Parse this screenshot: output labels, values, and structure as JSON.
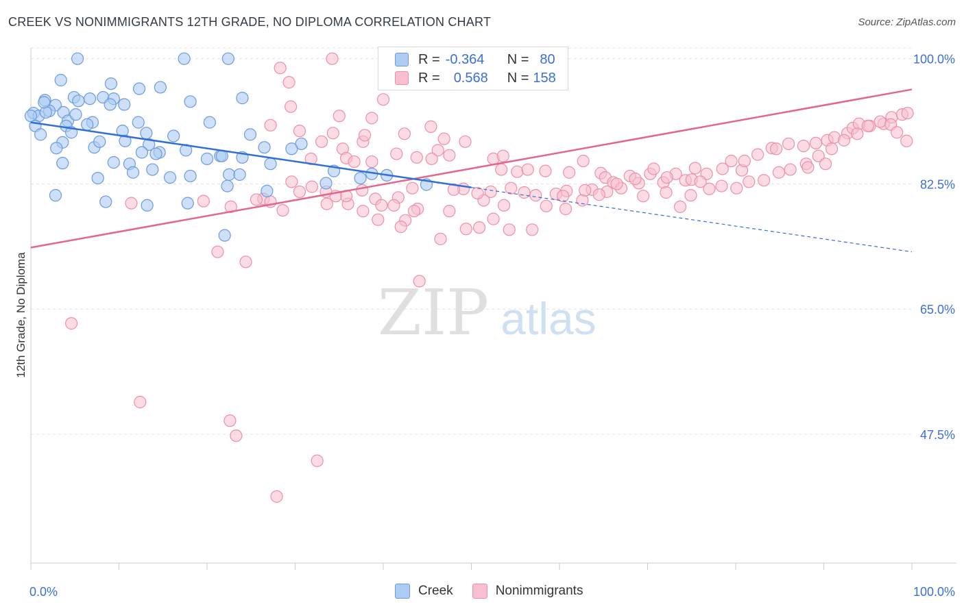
{
  "header": {
    "title": "CREEK VS NONIMMIGRANTS 12TH GRADE, NO DIPLOMA CORRELATION CHART",
    "source": "Source: ZipAtlas.com"
  },
  "watermark": {
    "zip": "ZIP",
    "atlas": "atlas"
  },
  "legend": {
    "rows": [
      {
        "r_label": "R =",
        "r_value": "-0.364",
        "n_label": "N =",
        "n_value": "80"
      },
      {
        "r_label": "R =",
        "r_value": "0.568",
        "n_label": "N =",
        "n_value": "158"
      }
    ],
    "bottom": [
      "Creek",
      "Nonimmigrants"
    ]
  },
  "colors": {
    "creek_fill": "#aecbf2",
    "creek_stroke": "#6a9be0",
    "creek_line": "#2f6fd6",
    "nonimm_fill": "#f7bfd0",
    "nonimm_stroke": "#ec8faa",
    "nonimm_line": "#e2668e",
    "axis_label": "#3a6fd8",
    "grid": "#e0e0e0"
  },
  "chart_data": {
    "type": "scatter",
    "title": "CREEK VS NONIMMIGRANTS 12TH GRADE, NO DIPLOMA CORRELATION CHART",
    "xlabel": "",
    "ylabel": "12th Grade, No Diploma",
    "xlim": [
      0,
      100
    ],
    "ylim": [
      29.5,
      101.5
    ],
    "x_tick_labels": [
      "0.0%",
      "100.0%"
    ],
    "y_ticks": [
      47.5,
      65.0,
      82.5,
      100.0
    ],
    "y_tick_labels": [
      "47.5%",
      "65.0%",
      "82.5%",
      "100.0%"
    ],
    "grid": true,
    "legend_position": "top-center",
    "series": [
      {
        "name": "Creek",
        "r": -0.364,
        "n": 80,
        "trend": {
          "x0": 0,
          "y0": 91.1,
          "x1": 50,
          "y1": 82.0,
          "dashed_to_x": 100,
          "dashed_to_y": 73.0
        },
        "points": [
          [
            5.3,
            100
          ],
          [
            17.4,
            100
          ],
          [
            22.4,
            100
          ],
          [
            3.4,
            97.0
          ],
          [
            9.1,
            96.5
          ],
          [
            12.3,
            95.8
          ],
          [
            14.7,
            96.0
          ],
          [
            4.9,
            94.6
          ],
          [
            5.4,
            94.1
          ],
          [
            6.7,
            94.4
          ],
          [
            8.2,
            94.6
          ],
          [
            9.4,
            94.4
          ],
          [
            1.6,
            94.2
          ],
          [
            2.8,
            93.5
          ],
          [
            18.1,
            94.0
          ],
          [
            24.0,
            94.5
          ],
          [
            9.0,
            93.6
          ],
          [
            10.6,
            93.6
          ],
          [
            2.1,
            92.7
          ],
          [
            3.7,
            92.5
          ],
          [
            0.3,
            92.4
          ],
          [
            0.9,
            92.0
          ],
          [
            1.7,
            92.5
          ],
          [
            0.0,
            92.0
          ],
          [
            4.2,
            91.3
          ],
          [
            12.2,
            91.1
          ],
          [
            7.0,
            91.1
          ],
          [
            6.4,
            90.8
          ],
          [
            0.5,
            90.6
          ],
          [
            1.1,
            89.4
          ],
          [
            4.0,
            90.6
          ],
          [
            10.4,
            89.9
          ],
          [
            13.1,
            89.6
          ],
          [
            20.3,
            91.1
          ],
          [
            24.9,
            89.4
          ],
          [
            4.6,
            89.7
          ],
          [
            3.6,
            88.3
          ],
          [
            2.9,
            87.5
          ],
          [
            7.2,
            87.6
          ],
          [
            7.8,
            88.4
          ],
          [
            10.7,
            88.5
          ],
          [
            13.4,
            88.0
          ],
          [
            9.4,
            85.5
          ],
          [
            12.6,
            86.9
          ],
          [
            14.6,
            86.9
          ],
          [
            17.6,
            87.2
          ],
          [
            14.2,
            86.7
          ],
          [
            21.5,
            86.4
          ],
          [
            26.5,
            87.6
          ],
          [
            24.0,
            86.2
          ],
          [
            3.6,
            85.4
          ],
          [
            11.2,
            85.3
          ],
          [
            20.0,
            86.0
          ],
          [
            7.6,
            83.3
          ],
          [
            11.6,
            84.1
          ],
          [
            13.8,
            84.5
          ],
          [
            15.8,
            83.4
          ],
          [
            18.1,
            83.6
          ],
          [
            22.3,
            82.2
          ],
          [
            2.8,
            80.9
          ],
          [
            8.5,
            80.0
          ],
          [
            13.2,
            79.5
          ],
          [
            17.8,
            79.8
          ],
          [
            30.7,
            88.1
          ],
          [
            29.6,
            87.4
          ],
          [
            34.4,
            84.3
          ],
          [
            38.7,
            83.9
          ],
          [
            40.4,
            83.7
          ],
          [
            44.9,
            82.4
          ],
          [
            22.5,
            83.8
          ],
          [
            23.7,
            83.8
          ],
          [
            37.4,
            83.3
          ],
          [
            1.5,
            93.9
          ],
          [
            5.1,
            92.2
          ],
          [
            16.2,
            89.2
          ],
          [
            21.7,
            86.4
          ],
          [
            27.2,
            85.3
          ],
          [
            22.0,
            75.3
          ],
          [
            26.8,
            81.5
          ],
          [
            33.5,
            82.6
          ]
        ]
      },
      {
        "name": "Nonimmigrants",
        "r": 0.568,
        "n": 158,
        "trend": {
          "x0": 0,
          "y0": 73.6,
          "x1": 100,
          "y1": 95.7
        },
        "points": [
          [
            34.2,
            100
          ],
          [
            28.3,
            98.7
          ],
          [
            29.3,
            96.7
          ],
          [
            40.0,
            94.3
          ],
          [
            29.5,
            93.3
          ],
          [
            38.7,
            91.7
          ],
          [
            27.2,
            90.7
          ],
          [
            30.5,
            89.9
          ],
          [
            35.0,
            92.0
          ],
          [
            34.3,
            89.6
          ],
          [
            37.7,
            88.4
          ],
          [
            37.9,
            89.3
          ],
          [
            45.4,
            90.5
          ],
          [
            42.4,
            89.5
          ],
          [
            46.9,
            88.8
          ],
          [
            49.3,
            88.4
          ],
          [
            46.2,
            87.2
          ],
          [
            47.5,
            86.5
          ],
          [
            33.0,
            88.4
          ],
          [
            35.4,
            87.4
          ],
          [
            31.8,
            86.0
          ],
          [
            35.8,
            86.1
          ],
          [
            36.7,
            85.6
          ],
          [
            38.7,
            85.6
          ],
          [
            41.5,
            86.7
          ],
          [
            43.8,
            86.2
          ],
          [
            45.5,
            86.0
          ],
          [
            52.5,
            86.0
          ],
          [
            53.6,
            86.4
          ],
          [
            53.4,
            84.5
          ],
          [
            55.2,
            84.2
          ],
          [
            56.4,
            84.5
          ],
          [
            58.4,
            84.3
          ],
          [
            61.1,
            84.1
          ],
          [
            62.7,
            85.7
          ],
          [
            64.7,
            84.0
          ],
          [
            65.2,
            83.4
          ],
          [
            66.1,
            82.7
          ],
          [
            68.0,
            83.6
          ],
          [
            69.0,
            82.6
          ],
          [
            70.3,
            83.9
          ],
          [
            71.8,
            82.7
          ],
          [
            73.2,
            83.9
          ],
          [
            74.3,
            83.0
          ],
          [
            75.4,
            84.7
          ],
          [
            76.7,
            83.9
          ],
          [
            78.5,
            84.6
          ],
          [
            79.5,
            85.7
          ],
          [
            80.7,
            84.4
          ],
          [
            81.0,
            85.7
          ],
          [
            82.5,
            86.6
          ],
          [
            84.1,
            87.5
          ],
          [
            84.6,
            87.4
          ],
          [
            86.0,
            88.1
          ],
          [
            87.7,
            87.8
          ],
          [
            89.1,
            88.2
          ],
          [
            90.4,
            88.6
          ],
          [
            91.2,
            89.0
          ],
          [
            92.7,
            89.6
          ],
          [
            93.3,
            90.3
          ],
          [
            94.0,
            90.9
          ],
          [
            95.2,
            90.6
          ],
          [
            96.8,
            90.9
          ],
          [
            97.7,
            91.8
          ],
          [
            98.9,
            92.2
          ],
          [
            99.5,
            92.4
          ],
          [
            75.0,
            83.1
          ],
          [
            72.2,
            83.4
          ],
          [
            70.7,
            84.6
          ],
          [
            68.6,
            83.2
          ],
          [
            67.0,
            81.9
          ],
          [
            65.4,
            81.4
          ],
          [
            63.7,
            81.7
          ],
          [
            60.8,
            81.5
          ],
          [
            59.6,
            81.1
          ],
          [
            57.3,
            80.9
          ],
          [
            56.0,
            81.3
          ],
          [
            54.5,
            81.9
          ],
          [
            52.2,
            81.4
          ],
          [
            51.4,
            80.2
          ],
          [
            50.7,
            81.2
          ],
          [
            49.1,
            81.8
          ],
          [
            48.0,
            81.7
          ],
          [
            43.3,
            81.9
          ],
          [
            41.7,
            80.6
          ],
          [
            39.1,
            80.4
          ],
          [
            37.6,
            81.6
          ],
          [
            33.5,
            81.4
          ],
          [
            30.5,
            81.4
          ],
          [
            31.9,
            82.1
          ],
          [
            26.4,
            80.4
          ],
          [
            25.6,
            80.3
          ],
          [
            28.6,
            78.8
          ],
          [
            27.2,
            80.0
          ],
          [
            33.6,
            79.7
          ],
          [
            41.2,
            79.5
          ],
          [
            39.8,
            79.5
          ],
          [
            43.9,
            79.0
          ],
          [
            36.0,
            79.7
          ],
          [
            35.8,
            80.8
          ],
          [
            34.6,
            80.8
          ],
          [
            11.4,
            79.8
          ],
          [
            19.6,
            80.1
          ],
          [
            22.7,
            79.3
          ],
          [
            29.6,
            82.8
          ],
          [
            37.7,
            78.7
          ],
          [
            43.5,
            78.7
          ],
          [
            47.5,
            78.7
          ],
          [
            42.5,
            77.4
          ],
          [
            39.4,
            77.5
          ],
          [
            52.5,
            77.6
          ],
          [
            42.0,
            76.5
          ],
          [
            54.3,
            76.1
          ],
          [
            46.5,
            74.8
          ],
          [
            49.4,
            76.2
          ],
          [
            50.9,
            76.4
          ],
          [
            56.9,
            76.1
          ],
          [
            53.7,
            79.5
          ],
          [
            58.5,
            79.4
          ],
          [
            60.7,
            79.0
          ],
          [
            62.6,
            80.2
          ],
          [
            64.5,
            81.0
          ],
          [
            69.5,
            80.8
          ],
          [
            72.1,
            81.3
          ],
          [
            74.9,
            80.9
          ],
          [
            77.0,
            81.8
          ],
          [
            78.4,
            82.2
          ],
          [
            80.1,
            81.9
          ],
          [
            81.5,
            82.8
          ],
          [
            83.2,
            83.0
          ],
          [
            84.9,
            84.1
          ],
          [
            86.2,
            84.5
          ],
          [
            88.0,
            85.3
          ],
          [
            89.4,
            86.4
          ],
          [
            90.9,
            87.4
          ],
          [
            92.3,
            88.6
          ],
          [
            93.8,
            89.5
          ],
          [
            95.0,
            90.6
          ],
          [
            96.4,
            91.2
          ],
          [
            97.6,
            90.8
          ],
          [
            98.3,
            89.7
          ],
          [
            99.4,
            88.5
          ],
          [
            73.7,
            79.3
          ],
          [
            21.2,
            73.0
          ],
          [
            24.4,
            71.6
          ],
          [
            44.1,
            68.9
          ],
          [
            4.6,
            63.0
          ],
          [
            12.4,
            52.0
          ],
          [
            22.6,
            49.4
          ],
          [
            23.3,
            47.3
          ],
          [
            32.5,
            43.8
          ],
          [
            27.9,
            38.8
          ],
          [
            60.4,
            80.8
          ],
          [
            62.9,
            81.6
          ],
          [
            66.5,
            82.5
          ],
          [
            76.0,
            82.8
          ],
          [
            88.2,
            84.8
          ],
          [
            90.2,
            85.3
          ]
        ]
      }
    ]
  }
}
